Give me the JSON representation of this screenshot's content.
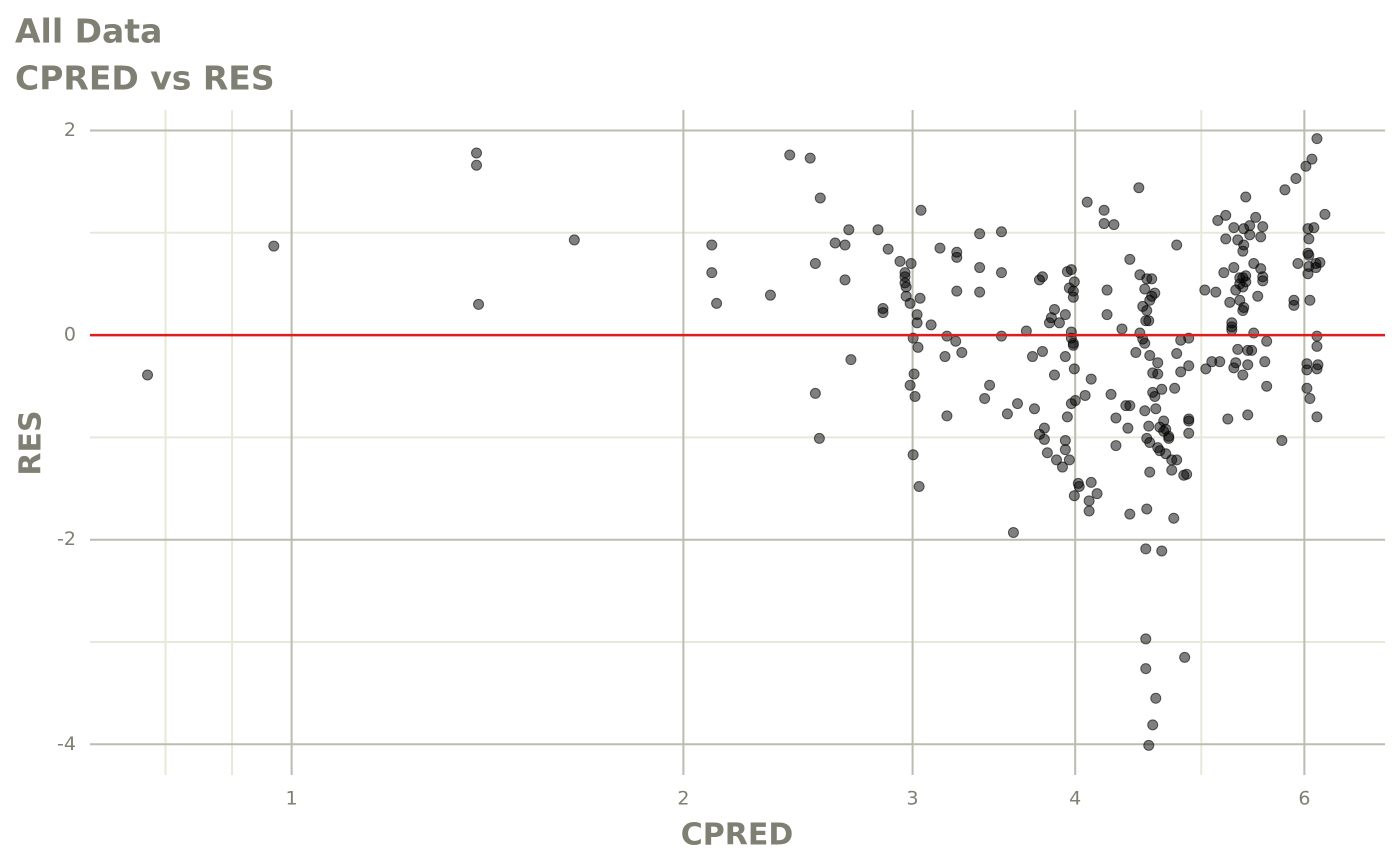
{
  "chart_data": {
    "type": "scatter",
    "title": "All Data",
    "subtitle": "CPRED vs RES",
    "x_label": "CPRED",
    "y_label": "RES",
    "x_scale": "log",
    "grid": true,
    "xlim": [
      0.7,
      6.92
    ],
    "ylim": [
      -4.3,
      2.2
    ],
    "xticks": [
      1,
      2,
      3,
      4,
      6
    ],
    "x_minor_grid": [
      0.8,
      0.9,
      5
    ],
    "yticks": [
      -4,
      -2,
      0,
      2
    ],
    "y_minor_grid": [
      -3,
      -1,
      1
    ],
    "reference_line": {
      "value": 0,
      "color": "#e31a1c"
    },
    "color": "#000000",
    "x": [
      0.775,
      0.969,
      1.387,
      1.387,
      1.392,
      1.649,
      2.103,
      2.103,
      2.121,
      2.333,
      2.414,
      2.503,
      2.526,
      2.526,
      2.544,
      2.548,
      2.616,
      2.662,
      2.662,
      2.68,
      2.69,
      2.822,
      2.847,
      2.847,
      2.873,
      2.934,
      2.96,
      2.96,
      2.96,
      2.966,
      2.966,
      2.987,
      2.987,
      2.992,
      3.003,
      3.003,
      3.008,
      3.013,
      3.024,
      3.024,
      3.029,
      3.035,
      3.04,
      3.045,
      3.1,
      3.149,
      3.177,
      3.188,
      3.188,
      3.238,
      3.244,
      3.244,
      3.244,
      3.273,
      3.378,
      3.378,
      3.378,
      3.408,
      3.438,
      3.511,
      3.511,
      3.511,
      3.548,
      3.586,
      3.612,
      3.669,
      3.709,
      3.722,
      3.755,
      3.755,
      3.775,
      3.775,
      3.788,
      3.788,
      3.808,
      3.822,
      3.835,
      3.856,
      3.856,
      3.87,
      3.89,
      3.911,
      3.931,
      3.931,
      3.931,
      3.931,
      3.945,
      3.945,
      3.959,
      3.959,
      3.973,
      3.973,
      3.973,
      3.973,
      3.987,
      3.987,
      3.987,
      3.987,
      3.994,
      3.994,
      3.994,
      4.001,
      4.022,
      4.029,
      4.071,
      4.086,
      4.1,
      4.1,
      4.115,
      4.115,
      4.158,
      4.21,
      4.21,
      4.232,
      4.232,
      4.262,
      4.284,
      4.299,
      4.299,
      4.345,
      4.375,
      4.391,
      4.406,
      4.406,
      4.406,
      4.453,
      4.477,
      4.485,
      4.485,
      4.508,
      4.508,
      4.524,
      4.524,
      4.524,
      4.532,
      4.532,
      4.532,
      4.532,
      4.54,
      4.54,
      4.54,
      4.54,
      4.556,
      4.556,
      4.556,
      4.564,
      4.564,
      4.564,
      4.564,
      4.58,
      4.58,
      4.588,
      4.588,
      4.588,
      4.605,
      4.605,
      4.613,
      4.613,
      4.629,
      4.629,
      4.629,
      4.646,
      4.646,
      4.662,
      4.662,
      4.678,
      4.678,
      4.695,
      4.695,
      4.72,
      4.72,
      4.745,
      4.745,
      4.762,
      4.77,
      4.787,
      4.787,
      4.787,
      4.821,
      4.821,
      4.847,
      4.855,
      4.872,
      4.89,
      4.89,
      4.89,
      4.89,
      4.89,
      5.031,
      5.04,
      5.094,
      5.13,
      5.148,
      5.166,
      5.203,
      5.221,
      5.221,
      5.24,
      5.258,
      5.277,
      5.277,
      5.277,
      5.296,
      5.296,
      5.296,
      5.314,
      5.314,
      5.333,
      5.333,
      5.352,
      5.352,
      5.352,
      5.381,
      5.381,
      5.381,
      5.381,
      5.381,
      5.39,
      5.39,
      5.39,
      5.409,
      5.409,
      5.409,
      5.428,
      5.428,
      5.428,
      5.447,
      5.447,
      5.466,
      5.486,
      5.486,
      5.505,
      5.525,
      5.554,
      5.554,
      5.574,
      5.574,
      5.574,
      5.594,
      5.613,
      5.613,
      5.766,
      5.797,
      5.89,
      5.89,
      5.911,
      5.932,
      6.016,
      6.027,
      6.027,
      6.027,
      6.038,
      6.038,
      6.038,
      6.048,
      6.048,
      6.048,
      6.059,
      6.059,
      6.081,
      6.102,
      6.124,
      6.124,
      6.135,
      6.135,
      6.135,
      6.135,
      6.135,
      6.146,
      6.167,
      6.222
    ],
    "values": [
      -0.39,
      0.87,
      1.78,
      1.66,
      0.3,
      0.93,
      0.88,
      0.61,
      0.31,
      0.39,
      1.76,
      1.73,
      0.7,
      -0.57,
      -1.01,
      1.34,
      0.9,
      0.88,
      0.54,
      1.03,
      -0.24,
      1.03,
      0.26,
      0.22,
      0.84,
      0.72,
      0.61,
      0.57,
      0.51,
      0.47,
      0.38,
      0.31,
      -0.49,
      0.7,
      -0.03,
      -1.17,
      -0.38,
      -0.6,
      0.2,
      0.12,
      -0.12,
      -1.48,
      0.36,
      1.22,
      0.1,
      0.85,
      -0.21,
      -0.79,
      -0.01,
      -0.06,
      0.81,
      0.76,
      0.43,
      -0.17,
      0.99,
      0.66,
      0.42,
      -0.62,
      -0.49,
      1.01,
      0.61,
      -0.01,
      -0.77,
      -1.93,
      -0.67,
      0.04,
      -0.21,
      -0.72,
      0.54,
      -0.97,
      -0.16,
      0.57,
      -0.91,
      -1.02,
      -1.15,
      0.12,
      0.17,
      -0.39,
      0.25,
      -1.22,
      0.12,
      -1.29,
      -1.03,
      -1.12,
      0.2,
      -0.21,
      0.62,
      -0.8,
      0.46,
      -1.22,
      0.64,
      -0.03,
      -0.67,
      0.03,
      -0.08,
      0.37,
      0.43,
      -0.1,
      -1.57,
      -0.33,
      0.52,
      -0.64,
      -1.45,
      -1.48,
      -0.59,
      1.3,
      -1.62,
      -1.72,
      -1.44,
      -0.43,
      -1.55,
      1.22,
      1.09,
      0.2,
      0.44,
      -0.58,
      1.08,
      -1.08,
      -0.81,
      0.06,
      -0.69,
      -0.91,
      -0.69,
      -1.75,
      0.74,
      -0.17,
      1.44,
      0.59,
      0.02,
      0.28,
      -0.04,
      -0.74,
      -0.08,
      0.45,
      -2.09,
      -2.97,
      -3.26,
      0.14,
      -1.7,
      -1.01,
      0.24,
      0.55,
      -4.01,
      -0.89,
      0.14,
      -1.34,
      -1.05,
      0.34,
      -0.2,
      0.55,
      0.38,
      -3.81,
      -0.37,
      -0.56,
      -0.6,
      0.41,
      -3.55,
      -0.72,
      -0.27,
      -1.1,
      -0.38,
      -0.9,
      -1.13,
      -2.11,
      -0.53,
      -0.84,
      -0.94,
      -1.16,
      -0.92,
      -0.99,
      -1.01,
      -1.32,
      -1.22,
      -1.79,
      -0.52,
      0.88,
      -1.22,
      -0.18,
      -0.36,
      -0.05,
      -1.37,
      -3.15,
      -1.36,
      -0.84,
      -0.96,
      -0.82,
      -0.3,
      -0.03,
      0.44,
      -0.33,
      -0.26,
      0.42,
      1.12,
      -0.26,
      0.61,
      1.17,
      0.94,
      -0.82,
      0.32,
      0.08,
      0.05,
      0.12,
      1.05,
      0.66,
      -0.32,
      -0.27,
      0.44,
      0.93,
      -0.14,
      0.34,
      0.5,
      0.56,
      0.82,
      0.56,
      0.47,
      0.24,
      -0.39,
      0.88,
      1.04,
      0.27,
      1.35,
      0.58,
      0.52,
      -0.78,
      -0.29,
      -0.15,
      0.98,
      1.07,
      -0.15,
      0.02,
      0.7,
      1.15,
      0.38,
      0.96,
      0.65,
      1.06,
      0.57,
      0.53,
      -0.26,
      -0.06,
      -0.5,
      -1.03,
      1.42,
      0.29,
      0.34,
      1.53,
      0.7,
      1.65,
      -0.52,
      -0.34,
      -0.28,
      1.04,
      0.8,
      0.6,
      0.94,
      0.78,
      0.67,
      -0.62,
      0.34,
      1.72,
      1.05,
      0.66,
      0.7,
      -0.01,
      -0.11,
      -0.33,
      -0.8,
      1.92,
      -0.29,
      0.71,
      1.18
    ]
  }
}
